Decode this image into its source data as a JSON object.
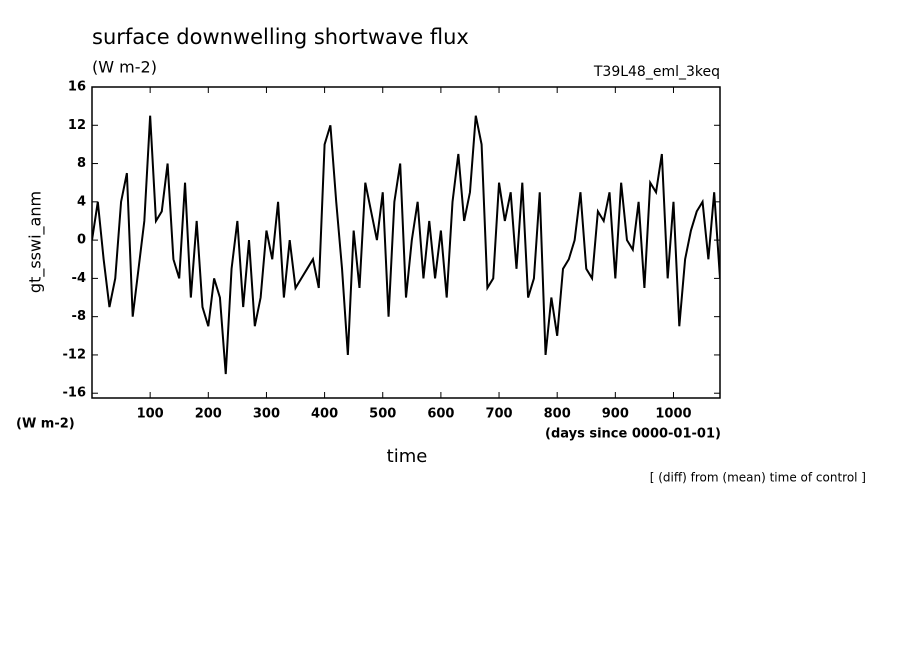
{
  "chart_data": {
    "type": "line",
    "title": "surface downwelling shortwave flux",
    "subtitle": "(W m-2)",
    "run_label": "T39L48_eml_3keq",
    "y_label": "gt_sswi_anm",
    "y_unit": "(W m-2)",
    "x_unit": "(days since 0000-01-01)",
    "x_label": "time",
    "note": "[ (diff) from (mean) time of control ]",
    "x": [
      0,
      10,
      20,
      30,
      40,
      50,
      60,
      70,
      80,
      90,
      100,
      110,
      120,
      130,
      140,
      150,
      160,
      170,
      180,
      190,
      200,
      210,
      220,
      230,
      240,
      250,
      260,
      270,
      280,
      290,
      300,
      310,
      320,
      330,
      340,
      350,
      360,
      370,
      380,
      390,
      400,
      410,
      420,
      430,
      440,
      450,
      460,
      470,
      480,
      490,
      500,
      510,
      520,
      530,
      540,
      550,
      560,
      570,
      580,
      590,
      600,
      610,
      620,
      630,
      640,
      650,
      660,
      670,
      680,
      690,
      700,
      710,
      720,
      730,
      740,
      750,
      760,
      770,
      780,
      790,
      800,
      810,
      820,
      830,
      840,
      850,
      860,
      870,
      880,
      890,
      900,
      910,
      920,
      930,
      940,
      950,
      960,
      970,
      980,
      990,
      1000,
      1010,
      1020,
      1030,
      1040,
      1050,
      1060,
      1070,
      1080
    ],
    "series": [
      {
        "name": "gt_sswi_anm",
        "color": "#000000",
        "values": [
          0,
          4,
          -2,
          -7,
          -4,
          4,
          7,
          -8,
          -3,
          2,
          13,
          2,
          3,
          8,
          -2,
          -4,
          6,
          -6,
          2,
          -7,
          -9,
          -4,
          -6,
          -14,
          -3,
          2,
          -7,
          0,
          -9,
          -6,
          1,
          -2,
          4,
          -6,
          0,
          -5,
          -4,
          -3,
          -2,
          -5,
          10,
          12,
          4,
          -3,
          -12,
          1,
          -5,
          6,
          3,
          0,
          5,
          -8,
          4,
          8,
          -6,
          0,
          4,
          -4,
          2,
          -4,
          1,
          -6,
          4,
          9,
          2,
          5,
          13,
          10,
          -5,
          -4,
          6,
          2,
          5,
          -3,
          6,
          -6,
          -4,
          5,
          -12,
          -6,
          -10,
          -3,
          -2,
          0,
          5,
          -3,
          -4,
          3,
          2,
          5,
          -4,
          6,
          0,
          -1,
          4,
          -5,
          6,
          5,
          9,
          -4,
          4,
          -9,
          -2,
          1,
          3,
          4,
          -2,
          5,
          -4
        ]
      }
    ],
    "xlim": [
      0,
      1080
    ],
    "ylim": [
      -16.5,
      16
    ],
    "xticks": [
      100,
      200,
      300,
      400,
      500,
      600,
      700,
      800,
      900,
      1000
    ],
    "yticks": [
      -16,
      -12,
      -8,
      -4,
      0,
      4,
      8,
      12,
      16
    ]
  }
}
